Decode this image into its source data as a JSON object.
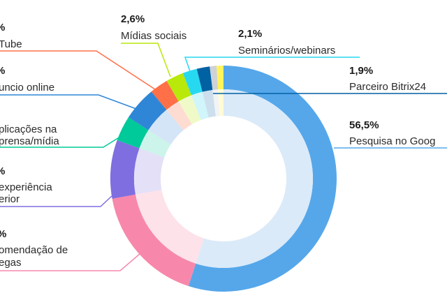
{
  "chart_data": {
    "type": "pie",
    "style": "donut",
    "slices": [
      {
        "label": "Pesquisa no Goog",
        "pct_label": "56,5%",
        "value": 56.5,
        "color": "#55a7ea",
        "tint": "#dbeaf9"
      },
      {
        "label_lines": [
          "omendação de",
          "egas"
        ],
        "pct_label": "%",
        "value": 17.6,
        "color": "#f788ab",
        "tint": "#fde2ea"
      },
      {
        "label_lines": [
          "experiência",
          "erior"
        ],
        "pct_label": "%",
        "value": 8.6,
        "color": "#7f6ee0",
        "tint": "#e4e0f8"
      },
      {
        "label_lines": [
          "plicações na",
          "prensa/mídia"
        ],
        "pct_label": "",
        "value": 3.7,
        "color": "#00c99a",
        "tint": "#ccf4ea"
      },
      {
        "label_lines": [
          "uncio online"
        ],
        "pct_label": "%",
        "value": 5.0,
        "color": "#2f86d6",
        "tint": "#d3e5f6"
      },
      {
        "label_lines": [
          "Tube"
        ],
        "pct_label": "%",
        "value": 2.7,
        "color": "#ff7048",
        "tint": "#ffdcd2"
      },
      {
        "label": "Mídias sociais",
        "pct_label": "2,6%",
        "value": 2.6,
        "color": "#b9e80b",
        "tint": "#f0fac8"
      },
      {
        "label": "Seminários/webinars",
        "pct_label": "2,1%",
        "value": 2.1,
        "color": "#27d9f0",
        "tint": "#d0f5fb"
      },
      {
        "label": "Parceiro Bitrix24",
        "pct_label": "1,9%",
        "value": 1.9,
        "color": "#0061a3",
        "tint": "#cddfed"
      },
      {
        "value": 1.0,
        "color": "#cfd2d6",
        "tint": "#f2f3f4"
      },
      {
        "value": 1.0,
        "color": "#fff45c",
        "tint": "#fffbd6"
      }
    ]
  }
}
